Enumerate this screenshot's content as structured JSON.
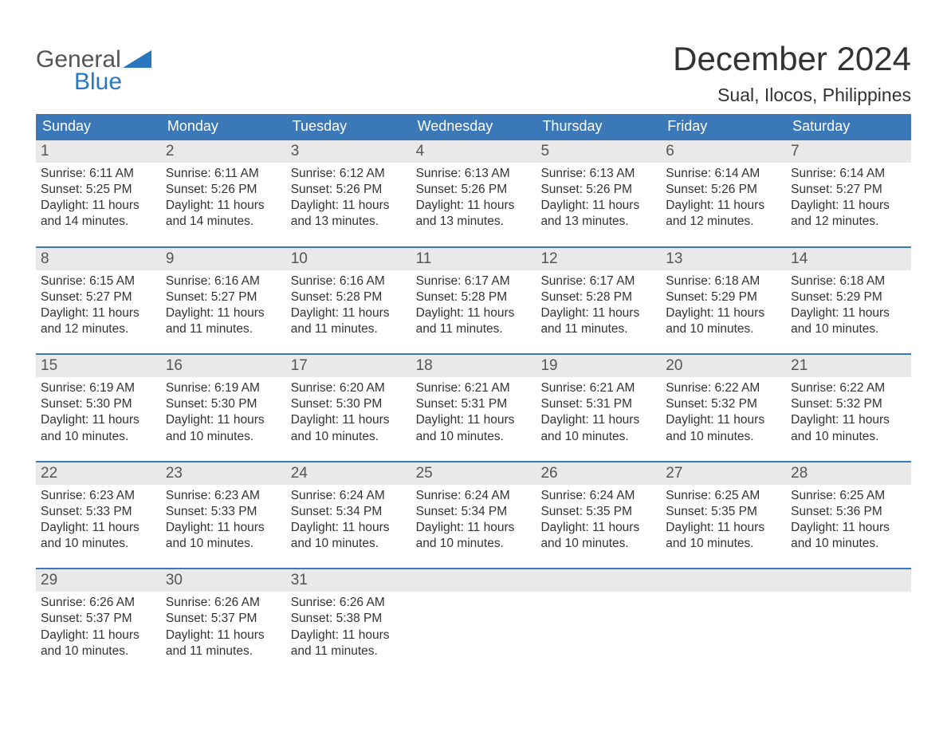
{
  "brand": {
    "text1": "General",
    "text2": "Blue"
  },
  "header": {
    "month_title": "December 2024",
    "location": "Sual, Ilocos, Philippines"
  },
  "colors": {
    "header_bg": "#3b78b8",
    "header_text": "#ffffff",
    "daynum_bg": "#e9e9e9",
    "daynum_text": "#555555",
    "body_text": "#333333",
    "week_border": "#3b78b8",
    "brand_blue": "#2878bf",
    "brand_gray": "#555555",
    "page_bg": "#ffffff"
  },
  "typography": {
    "month_title_fontsize": 42,
    "location_fontsize": 23,
    "weekday_fontsize": 18,
    "daynum_fontsize": 19,
    "body_fontsize": 15.5,
    "logo_fontsize": 30
  },
  "layout": {
    "columns": 7,
    "rows": 5,
    "cell_min_height": 136
  },
  "weekdays": [
    "Sunday",
    "Monday",
    "Tuesday",
    "Wednesday",
    "Thursday",
    "Friday",
    "Saturday"
  ],
  "days": [
    {
      "num": "1",
      "sunrise": "6:11 AM",
      "sunset": "5:25 PM",
      "daylight": "11 hours and 14 minutes."
    },
    {
      "num": "2",
      "sunrise": "6:11 AM",
      "sunset": "5:26 PM",
      "daylight": "11 hours and 14 minutes."
    },
    {
      "num": "3",
      "sunrise": "6:12 AM",
      "sunset": "5:26 PM",
      "daylight": "11 hours and 13 minutes."
    },
    {
      "num": "4",
      "sunrise": "6:13 AM",
      "sunset": "5:26 PM",
      "daylight": "11 hours and 13 minutes."
    },
    {
      "num": "5",
      "sunrise": "6:13 AM",
      "sunset": "5:26 PM",
      "daylight": "11 hours and 13 minutes."
    },
    {
      "num": "6",
      "sunrise": "6:14 AM",
      "sunset": "5:26 PM",
      "daylight": "11 hours and 12 minutes."
    },
    {
      "num": "7",
      "sunrise": "6:14 AM",
      "sunset": "5:27 PM",
      "daylight": "11 hours and 12 minutes."
    },
    {
      "num": "8",
      "sunrise": "6:15 AM",
      "sunset": "5:27 PM",
      "daylight": "11 hours and 12 minutes."
    },
    {
      "num": "9",
      "sunrise": "6:16 AM",
      "sunset": "5:27 PM",
      "daylight": "11 hours and 11 minutes."
    },
    {
      "num": "10",
      "sunrise": "6:16 AM",
      "sunset": "5:28 PM",
      "daylight": "11 hours and 11 minutes."
    },
    {
      "num": "11",
      "sunrise": "6:17 AM",
      "sunset": "5:28 PM",
      "daylight": "11 hours and 11 minutes."
    },
    {
      "num": "12",
      "sunrise": "6:17 AM",
      "sunset": "5:28 PM",
      "daylight": "11 hours and 11 minutes."
    },
    {
      "num": "13",
      "sunrise": "6:18 AM",
      "sunset": "5:29 PM",
      "daylight": "11 hours and 10 minutes."
    },
    {
      "num": "14",
      "sunrise": "6:18 AM",
      "sunset": "5:29 PM",
      "daylight": "11 hours and 10 minutes."
    },
    {
      "num": "15",
      "sunrise": "6:19 AM",
      "sunset": "5:30 PM",
      "daylight": "11 hours and 10 minutes."
    },
    {
      "num": "16",
      "sunrise": "6:19 AM",
      "sunset": "5:30 PM",
      "daylight": "11 hours and 10 minutes."
    },
    {
      "num": "17",
      "sunrise": "6:20 AM",
      "sunset": "5:30 PM",
      "daylight": "11 hours and 10 minutes."
    },
    {
      "num": "18",
      "sunrise": "6:21 AM",
      "sunset": "5:31 PM",
      "daylight": "11 hours and 10 minutes."
    },
    {
      "num": "19",
      "sunrise": "6:21 AM",
      "sunset": "5:31 PM",
      "daylight": "11 hours and 10 minutes."
    },
    {
      "num": "20",
      "sunrise": "6:22 AM",
      "sunset": "5:32 PM",
      "daylight": "11 hours and 10 minutes."
    },
    {
      "num": "21",
      "sunrise": "6:22 AM",
      "sunset": "5:32 PM",
      "daylight": "11 hours and 10 minutes."
    },
    {
      "num": "22",
      "sunrise": "6:23 AM",
      "sunset": "5:33 PM",
      "daylight": "11 hours and 10 minutes."
    },
    {
      "num": "23",
      "sunrise": "6:23 AM",
      "sunset": "5:33 PM",
      "daylight": "11 hours and 10 minutes."
    },
    {
      "num": "24",
      "sunrise": "6:24 AM",
      "sunset": "5:34 PM",
      "daylight": "11 hours and 10 minutes."
    },
    {
      "num": "25",
      "sunrise": "6:24 AM",
      "sunset": "5:34 PM",
      "daylight": "11 hours and 10 minutes."
    },
    {
      "num": "26",
      "sunrise": "6:24 AM",
      "sunset": "5:35 PM",
      "daylight": "11 hours and 10 minutes."
    },
    {
      "num": "27",
      "sunrise": "6:25 AM",
      "sunset": "5:35 PM",
      "daylight": "11 hours and 10 minutes."
    },
    {
      "num": "28",
      "sunrise": "6:25 AM",
      "sunset": "5:36 PM",
      "daylight": "11 hours and 10 minutes."
    },
    {
      "num": "29",
      "sunrise": "6:26 AM",
      "sunset": "5:37 PM",
      "daylight": "11 hours and 10 minutes."
    },
    {
      "num": "30",
      "sunrise": "6:26 AM",
      "sunset": "5:37 PM",
      "daylight": "11 hours and 11 minutes."
    },
    {
      "num": "31",
      "sunrise": "6:26 AM",
      "sunset": "5:38 PM",
      "daylight": "11 hours and 11 minutes."
    }
  ],
  "labels": {
    "sunrise_prefix": "Sunrise: ",
    "sunset_prefix": "Sunset: ",
    "daylight_prefix": "Daylight: "
  }
}
